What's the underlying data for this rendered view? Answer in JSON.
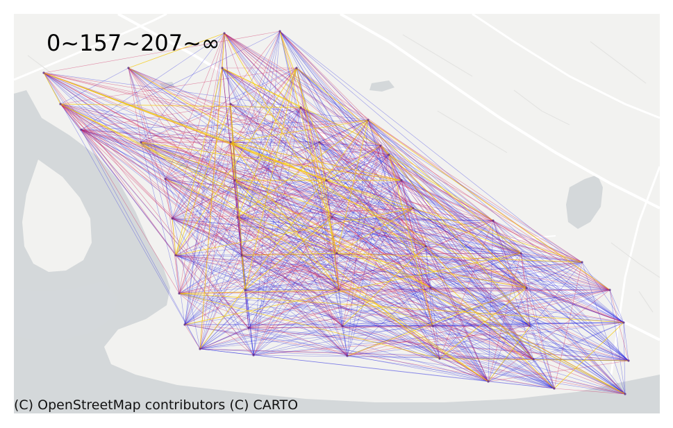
{
  "map": {
    "title": "0~157~207~∞",
    "attribution": "(C) OpenStreetMap contributors (C) CARTO",
    "colors": {
      "land": "#f2f2f0",
      "water": "#d4d8da",
      "roads": "#ffffff",
      "minor_roads": "#e7e7e5"
    },
    "legend_classes": [
      {
        "range": "0~157",
        "color": "#2323e0"
      },
      {
        "range": "157~207",
        "color": "#d0205a"
      },
      {
        "range": "207~∞",
        "color": "#f5c800"
      }
    ]
  }
}
